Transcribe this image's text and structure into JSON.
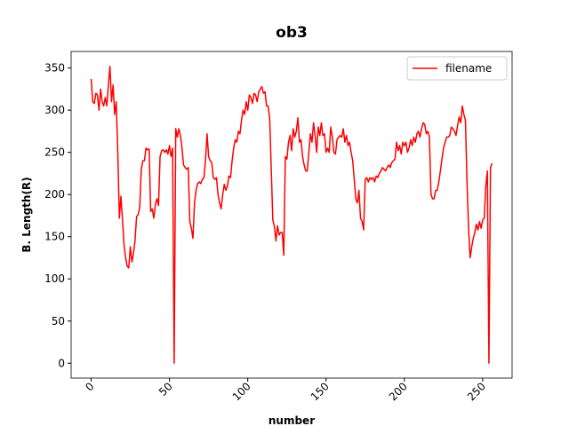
{
  "chart_data": {
    "type": "line",
    "title": "ob3",
    "x_label": "number",
    "y_label": "B. Length(R)",
    "x": [
      0,
      1,
      2,
      3,
      4,
      5,
      6,
      7,
      8,
      9,
      10,
      11,
      12,
      13,
      14,
      15,
      16,
      17,
      18,
      19,
      20,
      21,
      22,
      23,
      24,
      25,
      26,
      27,
      28,
      29,
      30,
      31,
      32,
      33,
      34,
      35,
      36,
      37,
      38,
      39,
      40,
      41,
      42,
      43,
      44,
      45,
      46,
      47,
      48,
      49,
      50,
      51,
      52,
      53,
      54,
      55,
      56,
      57,
      58,
      59,
      60,
      61,
      62,
      63,
      64,
      65,
      66,
      67,
      68,
      69,
      70,
      71,
      72,
      73,
      74,
      75,
      76,
      77,
      78,
      79,
      80,
      81,
      82,
      83,
      84,
      85,
      86,
      87,
      88,
      89,
      90,
      91,
      92,
      93,
      94,
      95,
      96,
      97,
      98,
      99,
      100,
      101,
      102,
      103,
      104,
      105,
      106,
      107,
      108,
      109,
      110,
      111,
      112,
      113,
      114,
      115,
      116,
      117,
      118,
      119,
      120,
      121,
      122,
      123,
      124,
      125,
      126,
      127,
      128,
      129,
      130,
      131,
      132,
      133,
      134,
      135,
      136,
      137,
      138,
      139,
      140,
      141,
      142,
      143,
      144,
      145,
      146,
      147,
      148,
      149,
      150,
      151,
      152,
      153,
      154,
      155,
      156,
      157,
      158,
      159,
      160,
      161,
      162,
      163,
      164,
      165,
      166,
      167,
      168,
      169,
      170,
      171,
      172,
      173,
      174,
      175,
      176,
      177,
      178,
      179,
      180,
      181,
      182,
      183,
      184,
      185,
      186,
      187,
      188,
      189,
      190,
      191,
      192,
      193,
      194,
      195,
      196,
      197,
      198,
      199,
      200,
      201,
      202,
      203,
      204,
      205,
      206,
      207,
      208,
      209,
      210,
      211,
      212,
      213,
      214,
      215,
      216,
      217,
      218,
      219,
      220,
      221,
      222,
      223,
      224,
      225,
      226,
      227,
      228,
      229,
      230,
      231,
      232,
      233,
      234,
      235,
      236,
      237,
      238,
      239,
      240,
      241,
      242,
      243,
      244,
      245,
      246,
      247,
      248,
      249,
      250,
      251,
      252,
      253,
      254,
      255,
      256
    ],
    "series": [
      {
        "name": "filename",
        "color": "#ff0000",
        "values": [
          337,
          310,
          308,
          320,
          318,
          300,
          325,
          310,
          305,
          315,
          305,
          330,
          352,
          310,
          330,
          295,
          310,
          250,
          172,
          198,
          170,
          140,
          125,
          115,
          113,
          138,
          120,
          130,
          145,
          174,
          176,
          185,
          230,
          240,
          240,
          255,
          253,
          254,
          180,
          183,
          172,
          188,
          195,
          187,
          245,
          252,
          253,
          250,
          253,
          248,
          258,
          245,
          255,
          0,
          278,
          268,
          278,
          270,
          255,
          235,
          232,
          230,
          232,
          168,
          160,
          148,
          190,
          205,
          213,
          215,
          213,
          218,
          220,
          240,
          272,
          245,
          240,
          238,
          220,
          218,
          220,
          200,
          190,
          183,
          200,
          212,
          205,
          210,
          222,
          220,
          240,
          255,
          265,
          262,
          275,
          272,
          288,
          300,
          295,
          310,
          300,
          318,
          315,
          308,
          320,
          318,
          310,
          322,
          325,
          328,
          320,
          322,
          305,
          305,
          290,
          230,
          170,
          162,
          145,
          163,
          152,
          155,
          155,
          128,
          245,
          242,
          262,
          270,
          252,
          278,
          268,
          275,
          291,
          262,
          265,
          245,
          235,
          228,
          228,
          250,
          272,
          262,
          285,
          270,
          250,
          280,
          270,
          285,
          270,
          272,
          250,
          255,
          250,
          280,
          268,
          250,
          248,
          265,
          268,
          270,
          268,
          278,
          262,
          270,
          258,
          262,
          250,
          240,
          218,
          195,
          190,
          205,
          172,
          168,
          158,
          218,
          220,
          215,
          220,
          218,
          220,
          215,
          222,
          220,
          225,
          228,
          232,
          230,
          228,
          232,
          235,
          232,
          238,
          240,
          242,
          262,
          252,
          258,
          248,
          262,
          258,
          262,
          250,
          255,
          265,
          258,
          268,
          262,
          272,
          275,
          268,
          278,
          285,
          283,
          272,
          275,
          268,
          200,
          195,
          195,
          205,
          205,
          215,
          228,
          242,
          255,
          262,
          268,
          268,
          270,
          280,
          278,
          275,
          270,
          282,
          292,
          285,
          305,
          295,
          288,
          215,
          160,
          125,
          138,
          148,
          155,
          165,
          158,
          168,
          160,
          170,
          172,
          210,
          228,
          0,
          232,
          237
        ]
      }
    ],
    "xlim": [
      -12.8,
      268.8
    ],
    "ylim": [
      -17.6,
      369.6
    ],
    "xticks": [
      0,
      50,
      100,
      150,
      200,
      250
    ],
    "yticks": [
      0,
      50,
      100,
      150,
      200,
      250,
      300,
      350
    ],
    "grid": false,
    "legend": "upper right"
  }
}
